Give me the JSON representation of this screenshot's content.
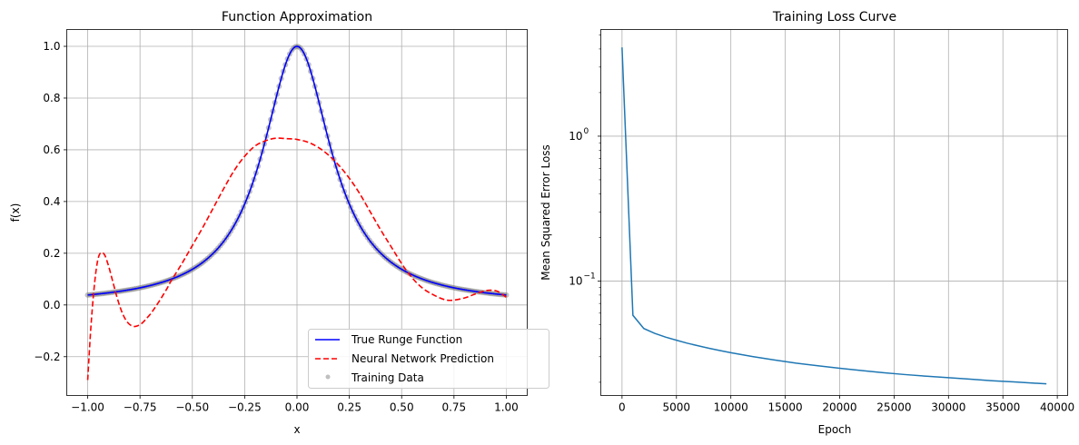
{
  "chart_data": [
    {
      "type": "line",
      "title": "Function Approximation",
      "xlabel": "x",
      "ylabel": "f(x)",
      "xlim": [
        -1.1,
        1.1
      ],
      "ylim": [
        -0.35,
        1.065
      ],
      "xticks": [
        -1.0,
        -0.75,
        -0.5,
        -0.25,
        0.0,
        0.25,
        0.5,
        0.75,
        1.0
      ],
      "xtick_labels": [
        "−1.00",
        "−0.75",
        "−0.50",
        "−0.25",
        "0.00",
        "0.25",
        "0.50",
        "0.75",
        "1.00"
      ],
      "yticks": [
        -0.2,
        0.0,
        0.2,
        0.4,
        0.6,
        0.8,
        1.0
      ],
      "ytick_labels": [
        "−0.2",
        "0.0",
        "0.2",
        "0.4",
        "0.6",
        "0.8",
        "1.0"
      ],
      "grid": true,
      "legend_position": "lower-right",
      "series": [
        {
          "name": "Training Data",
          "kind": "scatter",
          "color": "#808080",
          "function": "1/(1+25x^2)",
          "x_range": [
            -1.0,
            1.0
          ],
          "count": 200
        },
        {
          "name": "True Runge Function",
          "kind": "line",
          "color": "#0000ff",
          "style": "solid",
          "function": "1/(1+25x^2)",
          "x_range": [
            -1.0,
            1.0
          ]
        },
        {
          "name": "Neural Network Prediction",
          "kind": "line",
          "color": "#ff0000",
          "style": "dashed",
          "x": [
            -1.0,
            -0.985,
            -0.97,
            -0.955,
            -0.94,
            -0.92,
            -0.9,
            -0.88,
            -0.86,
            -0.84,
            -0.82,
            -0.8,
            -0.78,
            -0.76,
            -0.74,
            -0.72,
            -0.7,
            -0.68,
            -0.65,
            -0.62,
            -0.6,
            -0.55,
            -0.5,
            -0.45,
            -0.4,
            -0.35,
            -0.3,
            -0.25,
            -0.2,
            -0.15,
            -0.1,
            -0.05,
            -0.02,
            0.0,
            0.05,
            0.1,
            0.15,
            0.2,
            0.25,
            0.3,
            0.35,
            0.4,
            0.45,
            0.5,
            0.55,
            0.6,
            0.65,
            0.7,
            0.74,
            0.8,
            0.85,
            0.9,
            0.93,
            0.96,
            1.0
          ],
          "y": [
            -0.29,
            -0.09,
            0.06,
            0.16,
            0.2,
            0.195,
            0.15,
            0.09,
            0.03,
            -0.02,
            -0.055,
            -0.075,
            -0.083,
            -0.08,
            -0.07,
            -0.053,
            -0.035,
            -0.012,
            0.025,
            0.065,
            0.095,
            0.16,
            0.23,
            0.3,
            0.375,
            0.45,
            0.52,
            0.575,
            0.615,
            0.635,
            0.645,
            0.643,
            0.642,
            0.64,
            0.63,
            0.61,
            0.58,
            0.54,
            0.49,
            0.43,
            0.36,
            0.29,
            0.225,
            0.16,
            0.105,
            0.065,
            0.04,
            0.022,
            0.018,
            0.027,
            0.042,
            0.055,
            0.057,
            0.052,
            0.03
          ]
        }
      ]
    },
    {
      "type": "line",
      "title": "Training Loss Curve",
      "xlabel": "Epoch",
      "ylabel": "Mean Squared Error Loss",
      "xlim": [
        -1950,
        40950
      ],
      "ylim": [
        0.0162,
        5.45
      ],
      "yscale": "log",
      "xticks": [
        0,
        5000,
        10000,
        15000,
        20000,
        25000,
        30000,
        35000,
        40000
      ],
      "xtick_labels": [
        "0",
        "5000",
        "10000",
        "15000",
        "20000",
        "25000",
        "30000",
        "35000",
        "40000"
      ],
      "yticks_major": [
        0.1,
        1.0
      ],
      "ytick_labels": [
        "10",
        "10"
      ],
      "ytick_exponents": [
        "−1",
        "0"
      ],
      "grid": true,
      "series": [
        {
          "color": "#1f77b4",
          "x": [
            0,
            1000,
            2000,
            3000,
            4000,
            5000,
            6000,
            7000,
            8000,
            9000,
            10000,
            12000,
            14000,
            16000,
            18000,
            20000,
            22000,
            24000,
            26000,
            28000,
            30000,
            32000,
            34000,
            36000,
            38000,
            39000
          ],
          "y": [
            4.1,
            0.058,
            0.047,
            0.0435,
            0.041,
            0.039,
            0.0372,
            0.0357,
            0.0343,
            0.0331,
            0.032,
            0.0301,
            0.0285,
            0.0271,
            0.026,
            0.025,
            0.0241,
            0.0233,
            0.0226,
            0.022,
            0.0215,
            0.021,
            0.0205,
            0.0201,
            0.0197,
            0.0195
          ]
        }
      ]
    }
  ]
}
